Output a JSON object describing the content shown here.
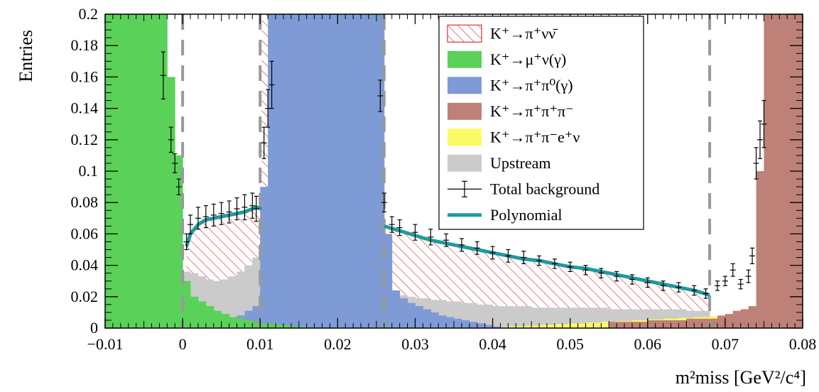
{
  "chart_data": {
    "type": "histogram",
    "ylabel": "Entries",
    "xlabel": "m²miss [GeV²/c⁴]",
    "xlim": [
      -0.01,
      0.08
    ],
    "ylim": [
      0,
      0.2
    ],
    "x_ticks": [
      "−0.01",
      "0",
      "0.01",
      "0.02",
      "0.03",
      "0.04",
      "0.05",
      "0.06",
      "0.07",
      "0.08"
    ],
    "y_ticks": [
      "0",
      "0.02",
      "0.04",
      "0.06",
      "0.08",
      "0.1",
      "0.12",
      "0.14",
      "0.16",
      "0.18",
      "0.2"
    ],
    "signal_region_boundaries": [
      0.0,
      0.01,
      0.026,
      0.068
    ],
    "legend_position": "top-right",
    "legend": [
      {
        "label": "K⁺→π⁺νν̄",
        "style": "hatch",
        "color": "#d93636"
      },
      {
        "label": "K⁺→μ⁺ν(γ)",
        "style": "fill",
        "color": "#5ad159"
      },
      {
        "label": "K⁺→π⁺π⁰(γ)",
        "style": "fill",
        "color": "#7f9bd6"
      },
      {
        "label": "K⁺→π⁺π⁺π⁻",
        "style": "fill",
        "color": "#bd8177"
      },
      {
        "label": "K⁺→π⁺π⁻e⁺ν",
        "style": "fill",
        "color": "#fafa64"
      },
      {
        "label": "Upstream",
        "style": "fill",
        "color": "#cbcbcb"
      },
      {
        "label": "Total background",
        "style": "errorbar",
        "color": "#000000"
      },
      {
        "label": "Polynomial",
        "style": "line",
        "color": "#1f9a9e"
      }
    ],
    "series": [
      {
        "name": "K⁺→μ⁺ν(γ)",
        "bin_width": 0.001,
        "x": [
          -0.01,
          -0.009,
          -0.008,
          -0.007,
          -0.006,
          -0.005,
          -0.004,
          -0.003,
          -0.002,
          -0.001,
          0.0,
          0.001,
          0.002,
          0.003,
          0.004,
          0.005,
          0.006,
          0.007,
          0.008,
          0.009,
          0.01,
          0.011,
          0.012,
          0.013,
          0.014,
          0.015
        ],
        "values": [
          0.2,
          0.2,
          0.2,
          0.2,
          0.2,
          0.2,
          0.2,
          0.2,
          0.16,
          0.11,
          0.03,
          0.02,
          0.017,
          0.014,
          0.011,
          0.009,
          0.007,
          0.006,
          0.005,
          0.004,
          0.003,
          0.003,
          0.002,
          0.002,
          0.001,
          0.001
        ]
      },
      {
        "name": "K⁺→π⁺π⁰(γ)",
        "bin_width": 0.001,
        "x": [
          0.002,
          0.003,
          0.004,
          0.005,
          0.006,
          0.007,
          0.008,
          0.009,
          0.01,
          0.011,
          0.012,
          0.013,
          0.014,
          0.015,
          0.016,
          0.017,
          0.018,
          0.019,
          0.02,
          0.021,
          0.022,
          0.023,
          0.024,
          0.025,
          0.026,
          0.027,
          0.028,
          0.029,
          0.03,
          0.031,
          0.032,
          0.033,
          0.034,
          0.035,
          0.036,
          0.037,
          0.038,
          0.039,
          0.04
        ],
        "values": [
          0.001,
          0.002,
          0.003,
          0.004,
          0.006,
          0.008,
          0.011,
          0.014,
          0.09,
          0.2,
          0.2,
          0.2,
          0.2,
          0.2,
          0.2,
          0.2,
          0.2,
          0.2,
          0.2,
          0.2,
          0.2,
          0.2,
          0.2,
          0.2,
          0.06,
          0.024,
          0.019,
          0.016,
          0.014,
          0.012,
          0.01,
          0.008,
          0.007,
          0.006,
          0.005,
          0.004,
          0.003,
          0.002,
          0.001
        ]
      },
      {
        "name": "K⁺→π⁺π⁺π⁻",
        "bin_width": 0.001,
        "x": [
          0.055,
          0.06,
          0.065,
          0.069,
          0.07,
          0.071,
          0.072,
          0.073,
          0.074,
          0.075,
          0.076,
          0.077,
          0.078,
          0.079
        ],
        "values": [
          0.004,
          0.005,
          0.006,
          0.008,
          0.009,
          0.011,
          0.012,
          0.014,
          0.1,
          0.2,
          0.2,
          0.2,
          0.2,
          0.2
        ]
      },
      {
        "name": "K⁺→π⁺π⁻e⁺ν",
        "bin_width": 0.002,
        "x": [
          0.04,
          0.042,
          0.044,
          0.046,
          0.048,
          0.05,
          0.052,
          0.054,
          0.056,
          0.058,
          0.06,
          0.062,
          0.064,
          0.066,
          0.068,
          0.07,
          0.072,
          0.074,
          0.076,
          0.078
        ],
        "values": [
          0.0005,
          0.001,
          0.0015,
          0.002,
          0.0025,
          0.003,
          0.0035,
          0.004,
          0.0045,
          0.005,
          0.0055,
          0.006,
          0.0065,
          0.007,
          0.0075,
          0.008,
          0.0085,
          0.009,
          0.0095,
          0.01
        ]
      },
      {
        "name": "Upstream",
        "bin_width": 0.001,
        "x": [
          0.0,
          0.001,
          0.002,
          0.003,
          0.004,
          0.005,
          0.006,
          0.007,
          0.008,
          0.009,
          0.026,
          0.027,
          0.028,
          0.029,
          0.03,
          0.032,
          0.034,
          0.036,
          0.038,
          0.04,
          0.045,
          0.05,
          0.055,
          0.06,
          0.065,
          0.067
        ],
        "values": [
          0.036,
          0.035,
          0.033,
          0.031,
          0.03,
          0.031,
          0.033,
          0.036,
          0.04,
          0.045,
          0.025,
          0.023,
          0.021,
          0.02,
          0.019,
          0.018,
          0.017,
          0.016,
          0.015,
          0.014,
          0.013,
          0.013,
          0.012,
          0.012,
          0.011,
          0.011
        ]
      },
      {
        "name": "Total background",
        "style": "errorbar",
        "x": [
          -0.0025,
          -0.0015,
          -0.001,
          -0.0005,
          0.0005,
          0.001,
          0.002,
          0.003,
          0.004,
          0.005,
          0.006,
          0.007,
          0.008,
          0.009,
          0.0095,
          0.0105,
          0.011,
          0.0115,
          0.0255,
          0.026,
          0.027,
          0.028,
          0.03,
          0.032,
          0.034,
          0.036,
          0.038,
          0.04,
          0.042,
          0.044,
          0.046,
          0.048,
          0.05,
          0.052,
          0.054,
          0.056,
          0.058,
          0.06,
          0.062,
          0.064,
          0.066,
          0.0675,
          0.069,
          0.07,
          0.071,
          0.072,
          0.073,
          0.0735,
          0.074,
          0.0745,
          0.075
        ],
        "values": [
          0.161,
          0.12,
          0.105,
          0.09,
          0.055,
          0.066,
          0.07,
          0.071,
          0.072,
          0.073,
          0.074,
          0.076,
          0.077,
          0.078,
          0.076,
          0.118,
          0.14,
          0.155,
          0.148,
          0.08,
          0.066,
          0.064,
          0.061,
          0.058,
          0.056,
          0.053,
          0.051,
          0.048,
          0.046,
          0.045,
          0.043,
          0.041,
          0.039,
          0.037,
          0.035,
          0.033,
          0.031,
          0.029,
          0.027,
          0.026,
          0.024,
          0.022,
          0.027,
          0.03,
          0.037,
          0.028,
          0.033,
          0.046,
          0.105,
          0.12,
          0.13
        ],
        "errors": [
          0.015,
          0.008,
          0.006,
          0.005,
          0.005,
          0.006,
          0.007,
          0.007,
          0.007,
          0.007,
          0.007,
          0.007,
          0.008,
          0.008,
          0.008,
          0.01,
          0.012,
          0.015,
          0.01,
          0.006,
          0.005,
          0.005,
          0.005,
          0.005,
          0.004,
          0.004,
          0.004,
          0.004,
          0.004,
          0.004,
          0.003,
          0.003,
          0.003,
          0.003,
          0.003,
          0.003,
          0.003,
          0.003,
          0.003,
          0.003,
          0.003,
          0.003,
          0.003,
          0.003,
          0.004,
          0.003,
          0.004,
          0.005,
          0.01,
          0.012,
          0.015
        ]
      },
      {
        "name": "Polynomial",
        "style": "line",
        "segments": [
          {
            "x": [
              0.0005,
              0.001,
              0.002,
              0.003,
              0.004,
              0.005,
              0.006,
              0.007,
              0.008,
              0.009,
              0.0095,
              0.0102
            ],
            "values": [
              0.052,
              0.06,
              0.066,
              0.069,
              0.07,
              0.071,
              0.072,
              0.073,
              0.074,
              0.076,
              0.077,
              0.076
            ]
          },
          {
            "x": [
              0.026,
              0.028,
              0.03,
              0.032,
              0.034,
              0.036,
              0.038,
              0.04,
              0.042,
              0.044,
              0.046,
              0.048,
              0.05,
              0.052,
              0.054,
              0.056,
              0.058,
              0.06,
              0.062,
              0.064,
              0.066,
              0.068
            ],
            "values": [
              0.065,
              0.062,
              0.059,
              0.056,
              0.054,
              0.052,
              0.05,
              0.048,
              0.046,
              0.044,
              0.043,
              0.041,
              0.039,
              0.038,
              0.036,
              0.034,
              0.032,
              0.03,
              0.028,
              0.026,
              0.024,
              0.021
            ]
          }
        ]
      }
    ]
  }
}
